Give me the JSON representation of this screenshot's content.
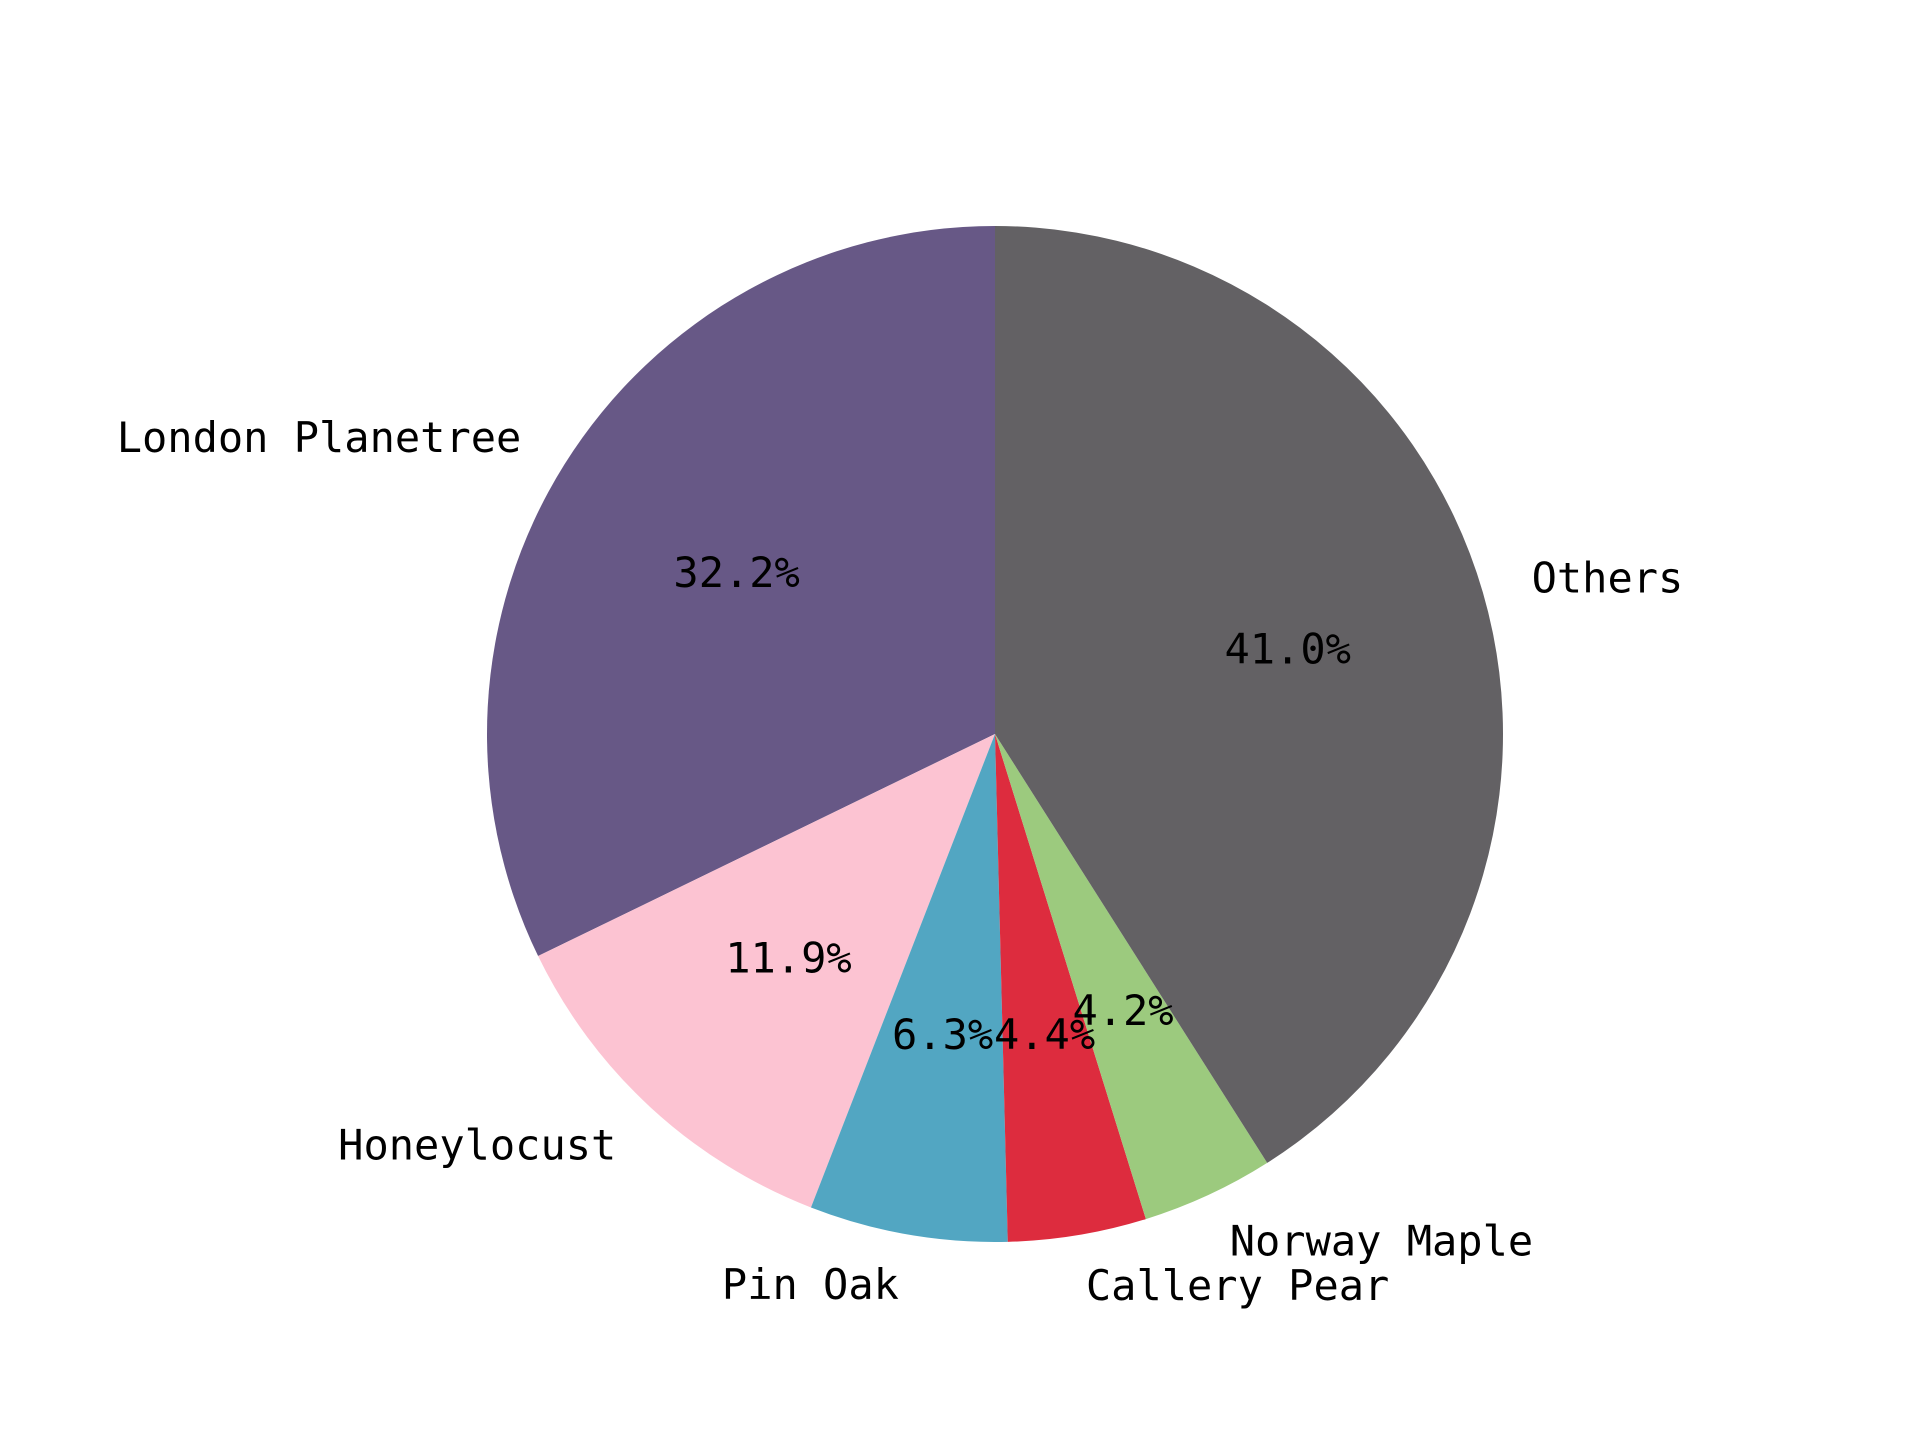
{
  "chart_data": {
    "type": "pie",
    "title": "",
    "start_angle_deg": 90,
    "direction": "counterclockwise",
    "legend": "none",
    "slices": [
      {
        "label": "London Planetree",
        "value": 32.2,
        "pct_label": "32.2%",
        "color": "#675886"
      },
      {
        "label": "Honeylocust",
        "value": 11.9,
        "pct_label": "11.9%",
        "color": "#fcc3d2"
      },
      {
        "label": "Pin Oak",
        "value": 6.3,
        "pct_label": "6.3%",
        "color": "#52a6c2"
      },
      {
        "label": "Callery Pear",
        "value": 4.4,
        "pct_label": "4.4%",
        "color": "#dd2c3e"
      },
      {
        "label": "Norway Maple",
        "value": 4.2,
        "pct_label": "4.2%",
        "color": "#9cca7e"
      },
      {
        "label": "Others",
        "value": 41.0,
        "pct_label": "41.0%",
        "color": "#636164"
      }
    ]
  }
}
